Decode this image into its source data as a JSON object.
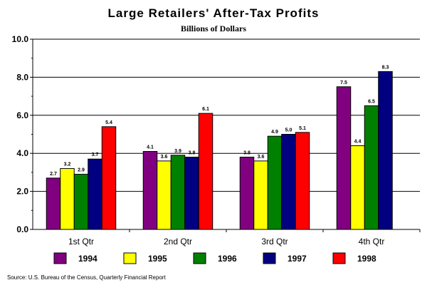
{
  "chart_data": {
    "type": "bar",
    "title": "Large Retailers' After-Tax Profits",
    "subtitle": "Billions of Dollars",
    "xlabel": "",
    "ylabel": "",
    "ylim": [
      0,
      10
    ],
    "yticks": [
      "0.0",
      "2.0",
      "4.0",
      "6.0",
      "8.0",
      "10.0"
    ],
    "categories": [
      "1st Qtr",
      "2nd Qtr",
      "3rd Qtr",
      "4th Qtr"
    ],
    "series": [
      {
        "name": "1994",
        "color": "#800080",
        "values": [
          2.7,
          4.1,
          3.8,
          7.5
        ]
      },
      {
        "name": "1995",
        "color": "#ffff00",
        "values": [
          3.2,
          3.6,
          3.6,
          4.4
        ]
      },
      {
        "name": "1996",
        "color": "#008000",
        "values": [
          2.9,
          3.9,
          4.9,
          6.5
        ]
      },
      {
        "name": "1997",
        "color": "#000080",
        "values": [
          3.7,
          3.8,
          5.0,
          8.3
        ]
      },
      {
        "name": "1998",
        "color": "#ff0000",
        "values": [
          5.4,
          6.1,
          5.1,
          null
        ]
      }
    ],
    "legend_position": "bottom",
    "grid": true,
    "source": "Source: U.S. Bureau of the Census, Quarterly Financial Report"
  }
}
